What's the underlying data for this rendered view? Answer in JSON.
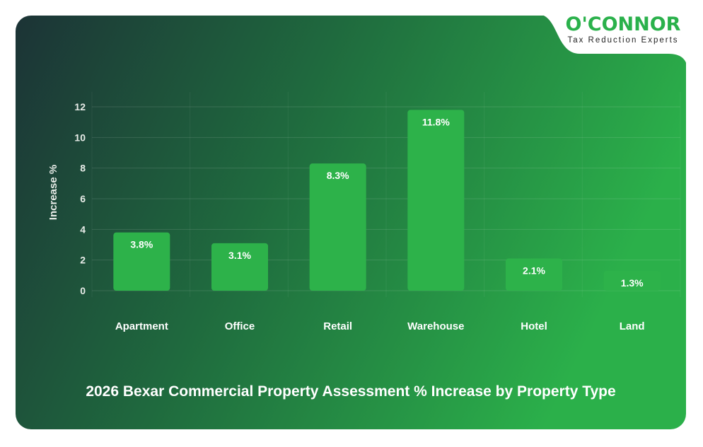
{
  "logo": {
    "name": "O'CONNOR",
    "tagline": "Tax Reduction Experts"
  },
  "colors": {
    "bar": "#2db24a",
    "bg_start": "#1c3336",
    "bg_end": "#2bb04a",
    "brand": "#2ab14b"
  },
  "chart_data": {
    "type": "bar",
    "title": "2026 Bexar Commercial Property Assessment % Increase by Property Type",
    "xlabel": "",
    "ylabel": "Increase %",
    "categories": [
      "Apartment",
      "Office",
      "Retail",
      "Warehouse",
      "Hotel",
      "Land"
    ],
    "values": [
      3.8,
      3.1,
      8.3,
      11.8,
      2.1,
      1.3
    ],
    "data_labels": [
      "3.8%",
      "3.1%",
      "8.3%",
      "11.8%",
      "2.1%",
      "1.3%"
    ],
    "ylim": [
      0,
      12
    ],
    "yticks": [
      0,
      2,
      4,
      6,
      8,
      10,
      12
    ],
    "grid": true,
    "legend": "none"
  }
}
